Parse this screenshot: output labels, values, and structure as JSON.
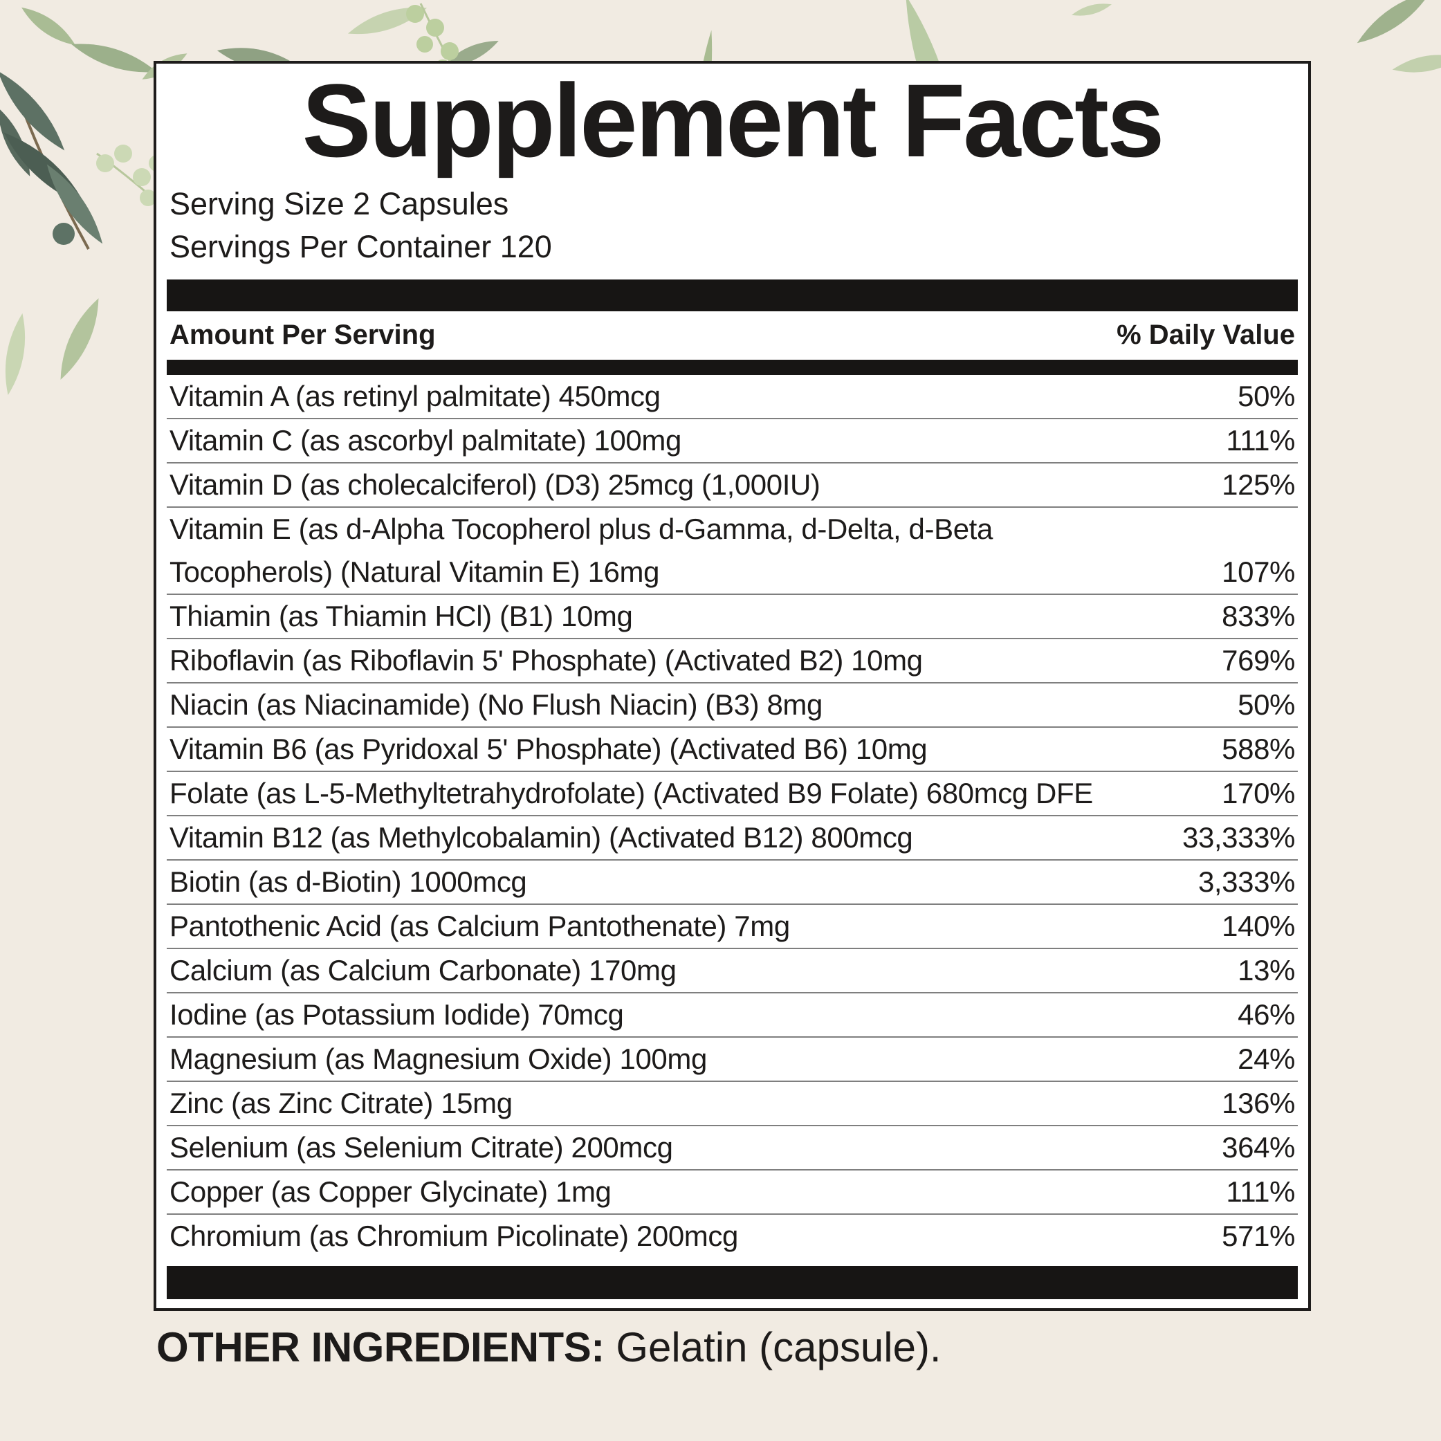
{
  "colors": {
    "background": "#f1ebe2",
    "panel_background": "#ffffff",
    "bars_and_border": "#171514",
    "text": "#1d1b1a",
    "row_separator": "#7f7f7f",
    "leaf_sage": "#9cb08b",
    "leaf_sage_light": "#b3c49d",
    "leaf_sage_small": "#a9bc94",
    "leaf_gray_green": "#8fa183",
    "leaf_gray_green_2": "#9aab8c",
    "leaf_pale": "#c6d3b0",
    "leaf_pale_2": "#ccd9b5",
    "leaf_pale_3": "#c9d6b3",
    "leaf_blade": "#b9cba4",
    "leaf_thin": "#a9bc92",
    "leaf_corner": "#9fb28d",
    "leaf_corner_2": "#c2d0ad",
    "leaf_dark": "#4c5e53",
    "leaf_dark_2": "#5d7164",
    "leaf_dark_3": "#6a7f70",
    "leaf_dark_4": "#57695d",
    "leaf_coin": "#bccf9f",
    "leaf_coin_dark": "#5d7265",
    "stem_brown": "#7b6a50",
    "stem_pale": "#b7c79c"
  },
  "panel": {
    "title": "Supplement Facts",
    "serving_size": "Serving Size 2 Capsules",
    "servings_per_container": "Servings Per Container 120",
    "columns": {
      "amount_per_serving": "Amount Per Serving",
      "daily_value": "% Daily Value"
    },
    "rows": [
      {
        "name": "Vitamin A (as retinyl palmitate) 450mcg",
        "daily_value": "50%"
      },
      {
        "name": "Vitamin C (as ascorbyl palmitate) 100mg",
        "daily_value": "111%"
      },
      {
        "name": "Vitamin D (as cholecalciferol) (D3) 25mcg (1,000IU)",
        "daily_value": "125%"
      },
      {
        "name": "Vitamin E (as d-Alpha Tocopherol plus d-Gamma, d-Delta, d-Beta\nTocopherols) (Natural Vitamin E) 16mg",
        "daily_value": "107%"
      },
      {
        "name": "Thiamin (as Thiamin HCl) (B1) 10mg",
        "daily_value": "833%"
      },
      {
        "name": "Riboflavin (as Riboflavin 5' Phosphate) (Activated B2) 10mg",
        "daily_value": "769%"
      },
      {
        "name": "Niacin (as Niacinamide) (No Flush Niacin) (B3) 8mg",
        "daily_value": "50%"
      },
      {
        "name": "Vitamin B6 (as Pyridoxal 5' Phosphate) (Activated B6) 10mg",
        "daily_value": "588%"
      },
      {
        "name": "Folate (as L-5-Methyltetrahydrofolate) (Activated B9 Folate) 680mcg DFE",
        "daily_value": "170%"
      },
      {
        "name": "Vitamin B12 (as Methylcobalamin) (Activated B12) 800mcg",
        "daily_value": "33,333%"
      },
      {
        "name": "Biotin (as d-Biotin) 1000mcg",
        "daily_value": "3,333%"
      },
      {
        "name": "Pantothenic Acid (as Calcium Pantothenate) 7mg",
        "daily_value": "140%"
      },
      {
        "name": "Calcium (as Calcium Carbonate) 170mg",
        "daily_value": "13%"
      },
      {
        "name": "Iodine (as Potassium Iodide) 70mcg",
        "daily_value": "46%"
      },
      {
        "name": "Magnesium (as Magnesium Oxide) 100mg",
        "daily_value": "24%"
      },
      {
        "name": "Zinc (as Zinc Citrate) 15mg",
        "daily_value": "136%"
      },
      {
        "name": "Selenium (as Selenium Citrate) 200mcg",
        "daily_value": "364%"
      },
      {
        "name": "Copper (as Copper Glycinate) 1mg",
        "daily_value": "111%"
      },
      {
        "name": "Chromium (as Chromium Picolinate) 200mcg",
        "daily_value": "571%"
      }
    ]
  },
  "footer": {
    "other_ingredients_label": "OTHER INGREDIENTS:",
    "other_ingredients_value": " Gelatin (capsule)."
  }
}
